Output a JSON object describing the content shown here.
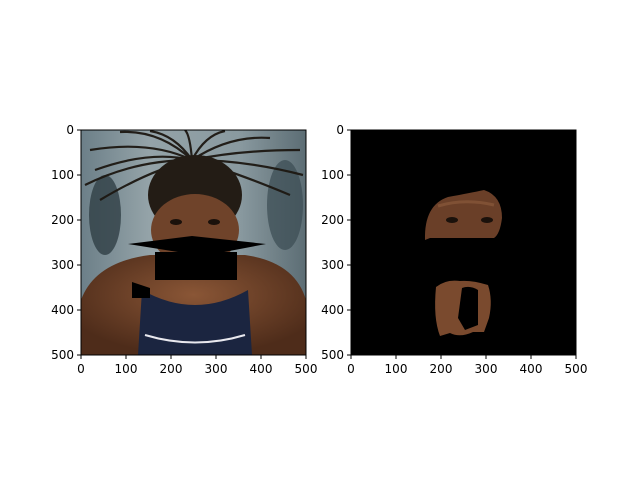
{
  "figure": {
    "panels": [
      {
        "name": "left-photo-panel",
        "x_ticks": [
          "0",
          "100",
          "200",
          "300",
          "400",
          "500"
        ],
        "y_ticks": [
          "0",
          "100",
          "200",
          "300",
          "400",
          "500"
        ],
        "x_tick_values": [
          0,
          100,
          200,
          300,
          400,
          500
        ],
        "y_tick_values": [
          0,
          100,
          200,
          300,
          400,
          500
        ],
        "xlim": [
          0,
          500
        ],
        "ylim": [
          0,
          500
        ]
      },
      {
        "name": "right-mask-panel",
        "x_ticks": [
          "0",
          "100",
          "200",
          "300",
          "400",
          "500"
        ],
        "y_ticks": [
          "0",
          "100",
          "200",
          "300",
          "400",
          "500"
        ],
        "x_tick_values": [
          0,
          100,
          200,
          300,
          400,
          500
        ],
        "y_tick_values": [
          0,
          100,
          200,
          300,
          400,
          500
        ],
        "xlim": [
          0,
          500
        ],
        "ylim": [
          0,
          500
        ]
      }
    ],
    "colors": {
      "mask_background": "#000000",
      "skin": "#7a4a2e",
      "skin_dark": "#5a3320",
      "jersey": "#1b2540",
      "backdrop": "#7f8f95"
    }
  }
}
